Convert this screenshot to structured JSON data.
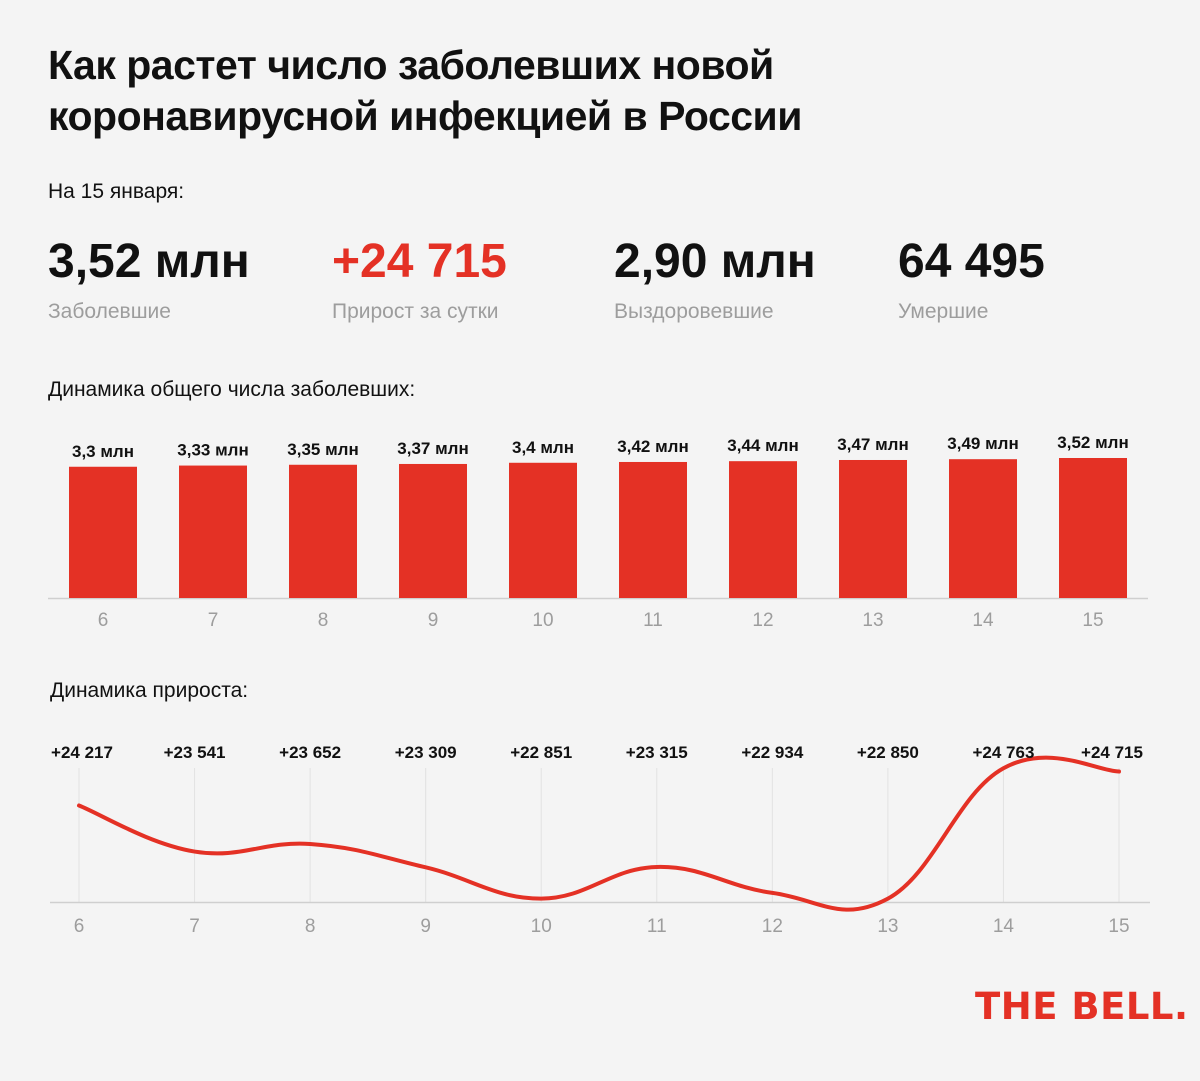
{
  "title": "Как растет число заболевших новой коронавирусной инфекцией в России",
  "date_label": "На 15 января:",
  "stats": [
    {
      "value": "3,52 млн",
      "label": "Заболевшие",
      "color": "#111111"
    },
    {
      "value": "+24 715",
      "label": "Прирост за сутки",
      "color": "#e43125"
    },
    {
      "value": "2,90 млн",
      "label": "Выздоровевшие",
      "color": "#111111"
    },
    {
      "value": "64 495",
      "label": "Умершие",
      "color": "#111111"
    }
  ],
  "brand": "THE BELL.",
  "colors": {
    "accent": "#e43125",
    "muted": "#9d9d9d",
    "axis": "#cfcfcf",
    "grid": "#e2e2e2"
  },
  "chart_data": [
    {
      "type": "bar",
      "title": "Динамика общего числа заболевших:",
      "categories": [
        "6",
        "7",
        "8",
        "9",
        "10",
        "11",
        "12",
        "13",
        "14",
        "15"
      ],
      "values": [
        3.3,
        3.33,
        3.35,
        3.37,
        3.4,
        3.42,
        3.44,
        3.47,
        3.49,
        3.52
      ],
      "data_labels": [
        "3,3 млн",
        "3,33 млн",
        "3,35 млн",
        "3,37 млн",
        "3,4 млн",
        "3,42 млн",
        "3,44 млн",
        "3,47 млн",
        "3,49 млн",
        "3,52 млн"
      ],
      "unit": "млн",
      "ylim": [
        0,
        3.52
      ],
      "grid": false
    },
    {
      "type": "line",
      "title": "Динамика прироста:",
      "categories": [
        "6",
        "7",
        "8",
        "9",
        "10",
        "11",
        "12",
        "13",
        "14",
        "15"
      ],
      "values": [
        24217,
        23541,
        23652,
        23309,
        22851,
        23315,
        22934,
        22850,
        24763,
        24715
      ],
      "data_labels": [
        "+24 217",
        "+23 541",
        "+23 652",
        "+23 309",
        "+22 851",
        "+23 315",
        "+22 934",
        "+22 850",
        "+24 763",
        "+24 715"
      ],
      "ylim": [
        22830,
        24767
      ],
      "grid": true
    }
  ]
}
